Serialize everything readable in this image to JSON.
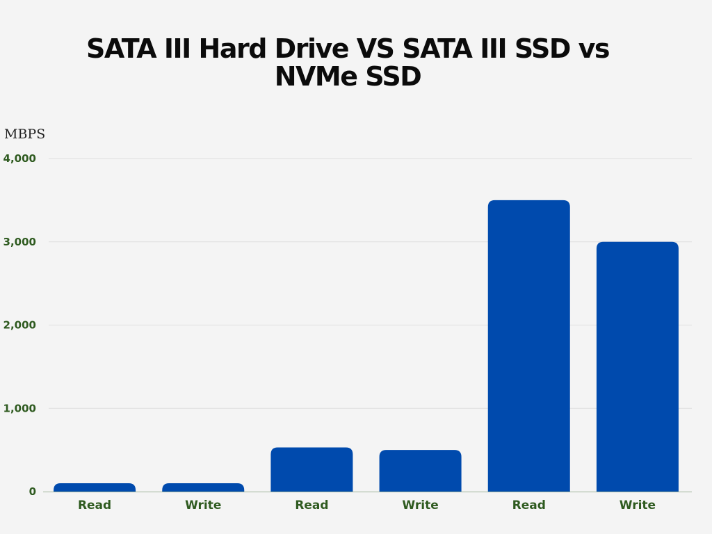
{
  "chart_data": {
    "type": "bar",
    "title": "SATA III Hard Drive  VS SATA III SSD vs NVMe SSD",
    "ylabel": "MBPS",
    "xlabel": "",
    "categories": [
      "Read",
      "Write",
      "Read",
      "Write",
      "Read",
      "Write"
    ],
    "values": [
      100,
      100,
      530,
      500,
      3500,
      3000
    ],
    "ylim": [
      0,
      4000
    ],
    "yticks": [
      0,
      1000,
      2000,
      3000,
      4000
    ],
    "ytick_labels": [
      "0",
      "1,000",
      "2,000",
      "3,000",
      "4,000"
    ],
    "grid": true,
    "bar_color": "#004aad",
    "tick_color": "#2e5a1f"
  }
}
